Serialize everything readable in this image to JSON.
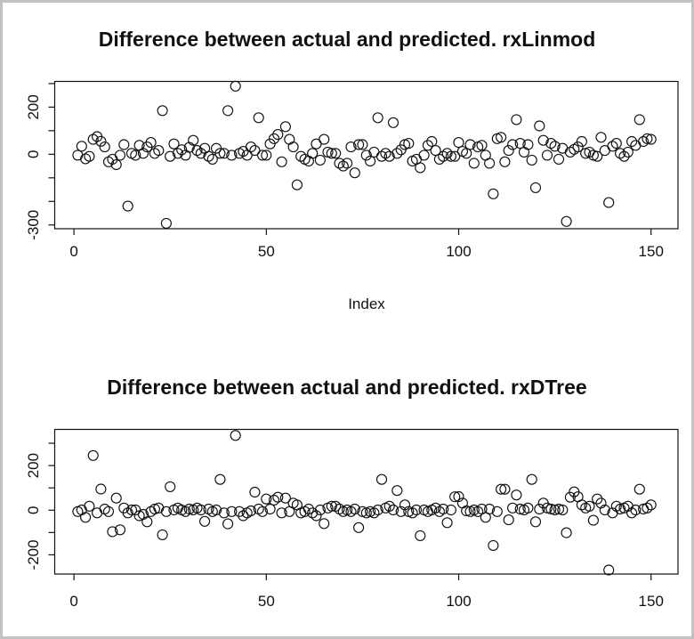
{
  "window": {
    "background": "#ffffff",
    "frame_color": "#c2c2c2",
    "foreground": "#111111"
  },
  "chart_data": [
    {
      "type": "scatter",
      "title": "Difference between actual and predicted. rxLinmod",
      "xlabel": "Index",
      "ylabel": "",
      "marker": "open-circle",
      "legend": "none",
      "grid": false,
      "xlim": [
        -5,
        157
      ],
      "ylim": [
        -316,
        309
      ],
      "xticks": [
        0,
        50,
        100,
        150
      ],
      "xtick_labels": [
        "0",
        "50",
        "100",
        "150"
      ],
      "yticks": [
        300,
        200,
        100,
        0,
        -100,
        -200,
        -300
      ],
      "ytick_labels": [
        "",
        "200",
        "",
        "0",
        "",
        "",
        "-300"
      ],
      "x": [
        1,
        2,
        3,
        4,
        5,
        6,
        7,
        8,
        9,
        10,
        11,
        12,
        13,
        14,
        15,
        16,
        17,
        18,
        19,
        20,
        21,
        22,
        23,
        24,
        25,
        26,
        27,
        28,
        29,
        30,
        31,
        32,
        33,
        34,
        35,
        36,
        37,
        38,
        39,
        40,
        41,
        42,
        43,
        44,
        45,
        46,
        47,
        48,
        49,
        50,
        51,
        52,
        53,
        54,
        55,
        56,
        57,
        58,
        59,
        60,
        61,
        62,
        63,
        64,
        65,
        66,
        67,
        68,
        69,
        70,
        71,
        72,
        73,
        74,
        75,
        76,
        77,
        78,
        79,
        80,
        81,
        82,
        83,
        84,
        85,
        86,
        87,
        88,
        89,
        90,
        91,
        92,
        93,
        94,
        95,
        96,
        97,
        98,
        99,
        100,
        101,
        102,
        103,
        104,
        105,
        106,
        107,
        108,
        109,
        110,
        111,
        112,
        113,
        114,
        115,
        116,
        117,
        118,
        119,
        120,
        121,
        122,
        123,
        124,
        125,
        126,
        127,
        128,
        129,
        130,
        131,
        132,
        133,
        134,
        135,
        136,
        137,
        138,
        139,
        140,
        141,
        142,
        143,
        144,
        145,
        146,
        147,
        148,
        149,
        150
      ],
      "y": [
        -4,
        34,
        -19,
        -9,
        63,
        75,
        55,
        31,
        -32,
        -21,
        -44,
        -4,
        41,
        -220,
        4,
        -4,
        38,
        4,
        31,
        50,
        4,
        16,
        185,
        -293,
        -9,
        44,
        4,
        19,
        -4,
        29,
        59,
        16,
        4,
        25,
        -9,
        -21,
        25,
        4,
        4,
        185,
        -4,
        289,
        4,
        12,
        -4,
        31,
        16,
        155,
        -4,
        -4,
        44,
        66,
        84,
        -32,
        117,
        63,
        31,
        -130,
        -9,
        -21,
        -29,
        4,
        44,
        -25,
        63,
        9,
        4,
        4,
        -38,
        -50,
        -38,
        31,
        -79,
        41,
        41,
        -4,
        -29,
        9,
        155,
        -9,
        4,
        -9,
        134,
        4,
        19,
        41,
        46,
        -29,
        -21,
        -57,
        -4,
        38,
        54,
        16,
        -21,
        -9,
        4,
        -9,
        -9,
        50,
        12,
        4,
        41,
        -38,
        31,
        38,
        -4,
        -38,
        -168,
        66,
        72,
        -32,
        16,
        41,
        147,
        46,
        9,
        41,
        -25,
        -142,
        120,
        59,
        -4,
        46,
        34,
        -21,
        25,
        -285,
        9,
        21,
        31,
        54,
        4,
        9,
        -4,
        -9,
        72,
        16,
        -205,
        34,
        46,
        4,
        -9,
        9,
        54,
        38,
        147,
        54,
        66,
        63
      ]
    },
    {
      "type": "scatter",
      "title": "Difference between actual and predicted. rxDTree",
      "xlabel": "",
      "ylabel": "",
      "marker": "open-circle",
      "legend": "none",
      "grid": false,
      "xlim": [
        -5,
        157
      ],
      "ylim": [
        -286,
        362
      ],
      "xticks": [
        0,
        50,
        100,
        150
      ],
      "xtick_labels": [
        "0",
        "50",
        "100",
        "150"
      ],
      "yticks": [
        300,
        200,
        100,
        0,
        -100,
        -200
      ],
      "ytick_labels": [
        "",
        "200",
        "",
        "0",
        "",
        "-200"
      ],
      "x": [
        1,
        2,
        3,
        4,
        5,
        6,
        7,
        8,
        9,
        10,
        11,
        12,
        13,
        14,
        15,
        16,
        17,
        18,
        19,
        20,
        21,
        22,
        23,
        24,
        25,
        26,
        27,
        28,
        29,
        30,
        31,
        32,
        33,
        34,
        35,
        36,
        37,
        38,
        39,
        40,
        41,
        42,
        43,
        44,
        45,
        46,
        47,
        48,
        49,
        50,
        51,
        52,
        53,
        54,
        55,
        56,
        57,
        58,
        59,
        60,
        61,
        62,
        63,
        64,
        65,
        66,
        67,
        68,
        69,
        70,
        71,
        72,
        73,
        74,
        75,
        76,
        77,
        78,
        79,
        80,
        81,
        82,
        83,
        84,
        85,
        86,
        87,
        88,
        89,
        90,
        91,
        92,
        93,
        94,
        95,
        96,
        97,
        98,
        99,
        100,
        101,
        102,
        103,
        104,
        105,
        106,
        107,
        108,
        109,
        110,
        111,
        112,
        113,
        114,
        115,
        116,
        117,
        118,
        119,
        120,
        121,
        122,
        123,
        124,
        125,
        126,
        127,
        128,
        129,
        130,
        131,
        132,
        133,
        134,
        135,
        136,
        137,
        138,
        139,
        140,
        141,
        142,
        143,
        144,
        145,
        146,
        147,
        148,
        149,
        150
      ],
      "y": [
        -6,
        1,
        -32,
        18,
        245,
        -12,
        95,
        5,
        -6,
        -96,
        54,
        -88,
        10,
        -12,
        1,
        1,
        -25,
        -19,
        -52,
        -6,
        5,
        10,
        -110,
        -6,
        105,
        1,
        10,
        1,
        -6,
        5,
        1,
        10,
        1,
        -50,
        5,
        -6,
        1,
        138,
        -12,
        -61,
        -6,
        335,
        -6,
        -25,
        -12,
        -3,
        81,
        5,
        -6,
        50,
        5,
        45,
        58,
        -12,
        54,
        -6,
        32,
        24,
        -12,
        -6,
        5,
        -12,
        -25,
        1,
        -60,
        10,
        18,
        18,
        5,
        -6,
        1,
        -6,
        5,
        -78,
        -6,
        -12,
        -6,
        -12,
        1,
        138,
        10,
        18,
        1,
        88,
        -6,
        24,
        -6,
        -12,
        1,
        -114,
        1,
        -6,
        1,
        10,
        -6,
        5,
        -56,
        1,
        60,
        61,
        32,
        -3,
        -6,
        1,
        -6,
        5,
        -32,
        5,
        -158,
        -6,
        94,
        94,
        -43,
        10,
        68,
        5,
        1,
        10,
        138,
        -52,
        5,
        32,
        10,
        5,
        1,
        5,
        1,
        -101,
        58,
        82,
        60,
        24,
        10,
        18,
        -45,
        50,
        32,
        1,
        -268,
        -12,
        18,
        5,
        10,
        18,
        -12,
        1,
        94,
        5,
        10,
        24
      ]
    }
  ]
}
